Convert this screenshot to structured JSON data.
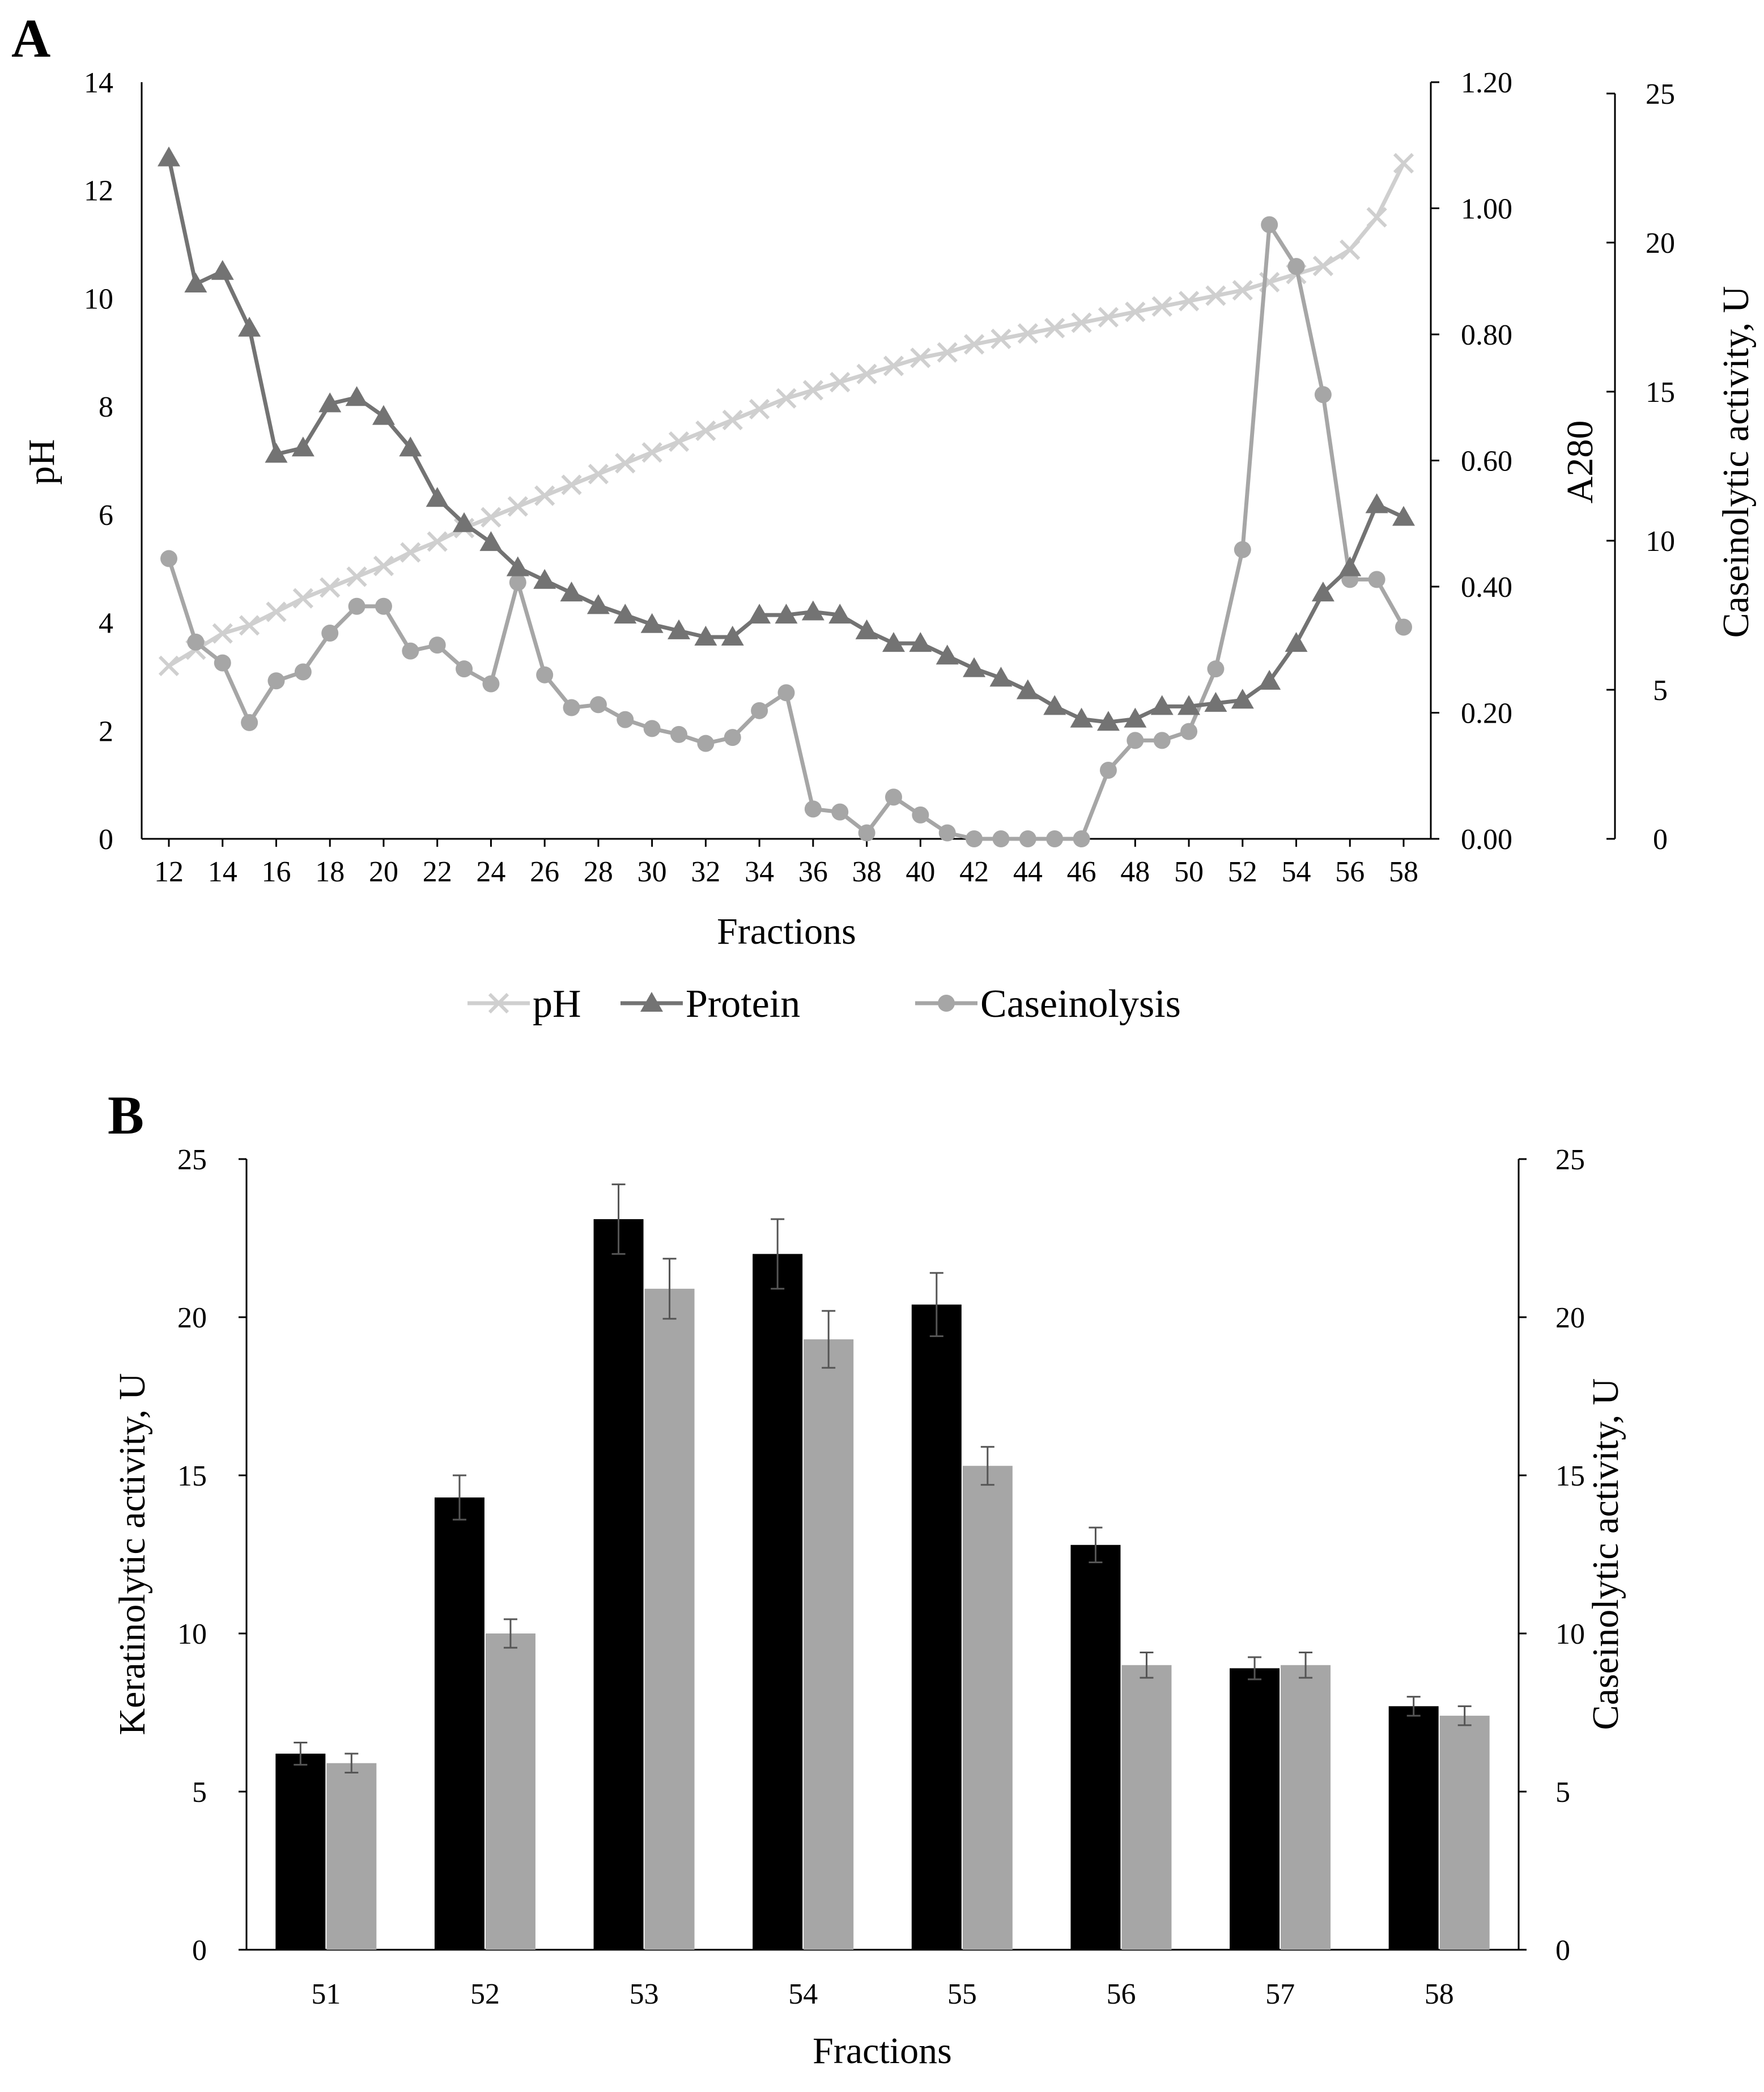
{
  "panel_a_label": "A",
  "panel_b_label": "B",
  "colors": {
    "ph": "#cfcfcf",
    "protein": "#737373",
    "caseinolysis": "#a6a6a6",
    "keratinolytic_bar": "#000000",
    "caseinolytic_bar": "#a6a6a6"
  },
  "chart_data": [
    {
      "type": "line",
      "title": "",
      "xlabel": "Fractions",
      "x": [
        12,
        13,
        14,
        15,
        16,
        17,
        18,
        19,
        20,
        21,
        22,
        23,
        24,
        25,
        26,
        27,
        28,
        29,
        30,
        31,
        32,
        33,
        34,
        35,
        36,
        37,
        38,
        39,
        40,
        41,
        42,
        43,
        44,
        45,
        46,
        47,
        48,
        49,
        50,
        51,
        52,
        53,
        54,
        55,
        56,
        57,
        58
      ],
      "x_tick_labels": [
        "12",
        "14",
        "16",
        "18",
        "20",
        "22",
        "24",
        "26",
        "28",
        "30",
        "32",
        "34",
        "36",
        "38",
        "40",
        "42",
        "44",
        "46",
        "48",
        "50",
        "52",
        "54",
        "56",
        "58"
      ],
      "axes": {
        "left": {
          "label": "pH",
          "range": [
            0,
            14
          ],
          "ticks": [
            "0",
            "2",
            "4",
            "6",
            "8",
            "10",
            "12",
            "14"
          ]
        },
        "right1": {
          "label": "A280",
          "range": [
            0,
            1.2
          ],
          "ticks": [
            "0.00",
            "0.20",
            "0.40",
            "0.60",
            "0.80",
            "1.00",
            "1.20"
          ]
        },
        "right2": {
          "label": "Caseinolytic activity, U",
          "range": [
            0,
            25
          ],
          "ticks": [
            "0",
            "5",
            "10",
            "15",
            "20",
            "25"
          ]
        }
      },
      "series": [
        {
          "name": "pH",
          "axis": "left",
          "marker": "x",
          "values": [
            3.2,
            3.5,
            3.8,
            3.95,
            4.2,
            4.45,
            4.65,
            4.85,
            5.05,
            5.3,
            5.5,
            5.75,
            5.95,
            6.15,
            6.35,
            6.55,
            6.75,
            6.95,
            7.15,
            7.35,
            7.55,
            7.75,
            7.95,
            8.15,
            8.3,
            8.45,
            8.6,
            8.75,
            8.9,
            9.0,
            9.15,
            9.25,
            9.35,
            9.45,
            9.55,
            9.65,
            9.75,
            9.85,
            9.95,
            10.05,
            10.15,
            10.3,
            10.45,
            10.6,
            10.9,
            11.5,
            12.5
          ]
        },
        {
          "name": "Protein",
          "axis": "right1",
          "marker": "triangle",
          "values": [
            1.08,
            0.88,
            0.9,
            0.81,
            0.61,
            0.62,
            0.69,
            0.7,
            0.67,
            0.62,
            0.54,
            0.5,
            0.47,
            0.43,
            0.41,
            0.39,
            0.37,
            0.355,
            0.34,
            0.33,
            0.32,
            0.32,
            0.355,
            0.355,
            0.36,
            0.355,
            0.33,
            0.31,
            0.31,
            0.29,
            0.27,
            0.255,
            0.235,
            0.21,
            0.19,
            0.185,
            0.19,
            0.21,
            0.21,
            0.215,
            0.22,
            0.25,
            0.31,
            0.39,
            0.43,
            0.53,
            0.51
          ]
        },
        {
          "name": "Caseinolysis",
          "axis": "right2",
          "marker": "circle",
          "values": [
            9.4,
            6.6,
            5.9,
            3.9,
            5.3,
            5.6,
            6.9,
            7.8,
            7.8,
            6.3,
            6.5,
            5.7,
            5.2,
            8.6,
            5.5,
            4.4,
            4.5,
            4.0,
            3.7,
            3.5,
            3.2,
            3.4,
            4.3,
            4.9,
            1.0,
            0.9,
            0.2,
            1.4,
            0.8,
            0.2,
            0.0,
            0.0,
            0.0,
            0.0,
            0.0,
            2.3,
            3.3,
            3.3,
            3.6,
            5.7,
            9.7,
            20.6,
            19.2,
            14.9,
            8.7,
            8.7,
            7.1
          ]
        }
      ],
      "legend": [
        "pH",
        "Protein",
        "Caseinolysis"
      ],
      "legend_position": "bottom"
    },
    {
      "type": "bar",
      "title": "",
      "xlabel": "Fractions",
      "ylabel": "Keratinolytic activity, U",
      "y2label": "Caseinolytic activity, U",
      "ylim": [
        0,
        25
      ],
      "y2lim": [
        0,
        25
      ],
      "y_ticks": [
        "0",
        "5",
        "10",
        "15",
        "20",
        "25"
      ],
      "categories": [
        "51",
        "52",
        "53",
        "54",
        "55",
        "56",
        "57",
        "58"
      ],
      "series": [
        {
          "name": "Keratinolytic activity",
          "axis": "left",
          "values": [
            6.2,
            14.3,
            23.1,
            22.0,
            20.4,
            12.8,
            8.9,
            7.7
          ],
          "errors": [
            0.35,
            0.7,
            1.1,
            1.1,
            1.0,
            0.55,
            0.35,
            0.3
          ]
        },
        {
          "name": "Caseinolytic activity",
          "axis": "right",
          "values": [
            5.9,
            10.0,
            20.9,
            19.3,
            15.3,
            9.0,
            9.0,
            7.4
          ],
          "errors": [
            0.3,
            0.45,
            0.95,
            0.9,
            0.6,
            0.4,
            0.4,
            0.3
          ]
        }
      ]
    }
  ]
}
